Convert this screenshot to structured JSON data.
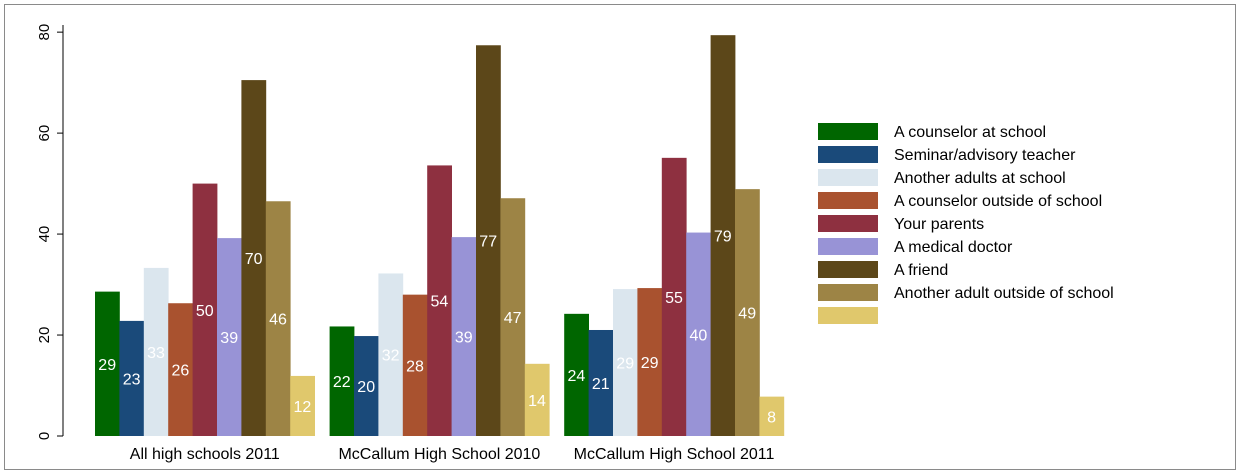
{
  "chart_data": {
    "type": "bar",
    "categories": [
      "All high schools 2011",
      "McCallum High School 2010",
      "McCallum High School 2011"
    ],
    "ylim": [
      0,
      83
    ],
    "y_ticks": [
      0,
      20,
      40,
      60,
      80
    ],
    "grid": false,
    "legend_position": "right",
    "series": [
      {
        "name": "A counselor at school",
        "color": "#006600",
        "label_color": "#ffffff",
        "values": [
          28.6,
          21.7,
          24.2
        ],
        "labels": [
          "29",
          "22",
          "24"
        ]
      },
      {
        "name": "Seminar/advisory teacher",
        "color": "#1a4a7a",
        "label_color": "#ffffff",
        "values": [
          22.8,
          19.8,
          21.0
        ],
        "labels": [
          "23",
          "20",
          "21"
        ]
      },
      {
        "name": "Another adults at school",
        "color": "#dbe6ee",
        "label_color": "#ffffff",
        "values": [
          33.3,
          32.2,
          29.1
        ],
        "labels": [
          "33",
          "32",
          "29"
        ]
      },
      {
        "name": "A counselor outside of school",
        "color": "#a9522f",
        "label_color": "#ffffff",
        "values": [
          26.3,
          28.0,
          29.3
        ],
        "labels": [
          "26",
          "28",
          "29"
        ]
      },
      {
        "name": "Your parents",
        "color": "#8e3040",
        "label_color": "#ffffff",
        "values": [
          50.0,
          53.6,
          55.1
        ],
        "labels": [
          "50",
          "54",
          "55"
        ]
      },
      {
        "name": "A medical doctor",
        "color": "#9893d6",
        "label_color": "#ffffff",
        "values": [
          39.2,
          39.4,
          40.3
        ],
        "labels": [
          "39",
          "39",
          "40"
        ]
      },
      {
        "name": "A friend",
        "color": "#5c4719",
        "label_color": "#ffffff",
        "values": [
          70.5,
          77.4,
          79.4
        ],
        "labels": [
          "70",
          "77",
          "79"
        ]
      },
      {
        "name": "Another adult outside of school",
        "color": "#9d8445",
        "label_color": "#ffffff",
        "values": [
          46.5,
          47.1,
          48.9
        ],
        "labels": [
          "46",
          "47",
          "49"
        ]
      },
      {
        "name": "",
        "color": "#e0c86c",
        "label_color": "#ffffff",
        "values": [
          11.9,
          14.3,
          7.8
        ],
        "labels": [
          "12",
          "14",
          "8"
        ]
      }
    ]
  }
}
